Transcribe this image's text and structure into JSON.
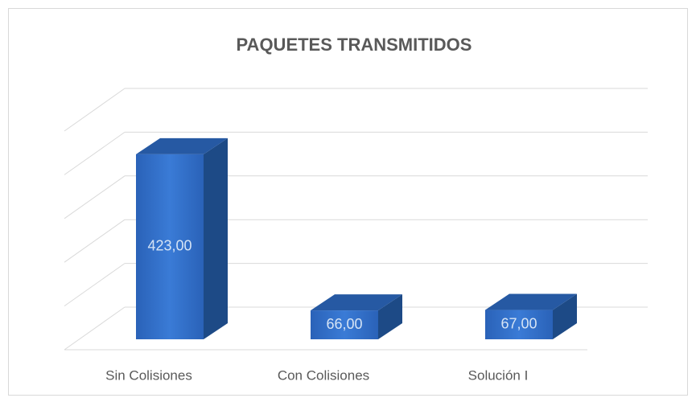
{
  "chart_data": {
    "type": "bar3d",
    "title": "PAQUETES TRANSMITIDOS",
    "categories": [
      "Sin Colisiones",
      "Con Colisiones",
      "Solución I"
    ],
    "values": [
      423,
      66,
      67
    ],
    "value_labels": [
      "423,00",
      "66,00",
      "67,00"
    ],
    "color": "#2f6cc4",
    "ylim": [
      0,
      500
    ],
    "yticks": [
      0,
      100,
      200,
      300,
      400,
      500
    ],
    "grid": true
  }
}
